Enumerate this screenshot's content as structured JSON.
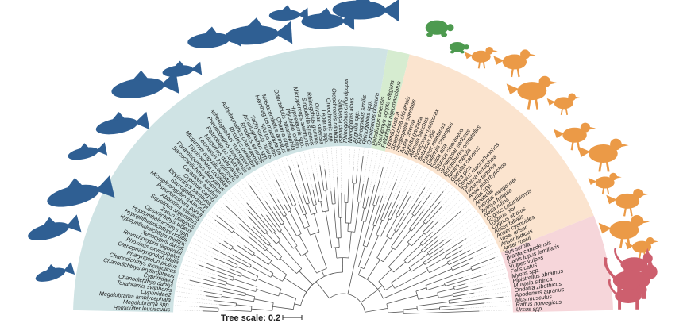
{
  "tree": {
    "scale_label": "Tree scale: 0.2",
    "colors": {
      "fish": "#2f5f93",
      "reptile": "#4d9a4f",
      "bird": "#eb9a47",
      "mammal": "#cd5f6e",
      "fish_bg": "#cfe3e4",
      "reptile_bg": "#d6ecd0",
      "bird_bg": "#fbe4cf",
      "mammal_bg": "#f6d6da"
    },
    "clades": [
      {
        "key": "fish",
        "icon": "fish-silhouette-icon",
        "leaves": [
          "Hemiculter leucisculus",
          "Megalobrama spp.",
          "Megalobrama amblycephala",
          "Cyprinidae2",
          "Toxabramis swinhonis",
          "Chanodichthys dabryi",
          "Cyprinidae3",
          "Chanodichthys erythropterus",
          "Chanodichthys mongolicus",
          "Pharyngodon piceus",
          "Ctenopharyngodon idella",
          "Phoxinus oxycephalus",
          "Rhynchocypris lagowskii",
          "Xenocypris davidi",
          "Hypophthalmichthys molitrix",
          "Hypophthalmichthys nobilis",
          "Hypophthalmichthys spp.",
          "Opsariichthys bidens",
          "Zacco platypus",
          "Squalidus argentatus",
          "Abbottina rivularis",
          "Pseudorasbora parva",
          "Microphysogobio fukiensis",
          "Saurogobio dabryi",
          "Elopichthys bambusa",
          "Cyprinus carpio",
          "Carassius auratus",
          "Sarcocheilichthys sinensis",
          "Paramisgurnus dabryanus",
          "Tiipohochara cobitidae",
          "Misgurnus anguillicaudatus",
          "Leiocassis longirostris",
          "Misgurnus dabryanus",
          "Pelteobagrus fulvidraco",
          "Pseudobagrus ussuriensis",
          "Acheilognathus macropterus",
          "Rhodeus ocellatus",
          "Acheilognathus chankaensis",
          "Rhodeus sinensis",
          "Acheilognathus spp.",
          "Tachysurus nitidus",
          "Silurus asotus",
          "Hemibagrus macropterus",
          "Mastacembelus armatus",
          "Channa argus",
          "Odontobutis potamophila",
          "Ptychidio jordani",
          "Hypseleotris spp.",
          "Micropercops swinhonis",
          "Sinobdella sinensis",
          "Rhinogobius giurinus",
          "Oryzias sinensis",
          "Lepomis spp.",
          "Oreochromis spp.",
          "Oreochromis niloticus",
          "Siniperca chuatsi",
          "Rhinogobius cliffordpopei",
          "Monopterus albus",
          "Anguilla spp.",
          "Rhinogobius similis",
          "Rhinogobius spp.",
          "Odontobutis obscura"
        ]
      },
      {
        "key": "reptile",
        "icon": "turtle-silhouette-icon",
        "leaves": [
          "Pelodiscus sinensis",
          "Trachemys scripta elegans",
          "Pelophylax nigromaculatus"
        ]
      },
      {
        "key": "bird",
        "icon": "bird-silhouette-icon",
        "leaves": [
          "Hirundo rustica",
          "Streptopelia chinensis",
          "Streptopelia orientalis",
          "Ardea cinerea",
          "Egretta garzetta",
          "Ardeola bacchus",
          "Nycticorax nycticorax",
          "Bubulcus ibis",
          "Passer montanus",
          "Gallinula chloropus",
          "Fulica atra",
          "Sturnus cineraceus",
          "Spodiopsar sericeus",
          "Acridotheres cristatellus",
          "Turdus merula",
          "Garrulax canorus",
          "Pica pica",
          "Corvus macrorhynchos",
          "Tadorna ferruginea",
          "Tadorna tadorna",
          "Anas platyrhynchos",
          "Anas spp.",
          "Anatidae",
          "Mergus merganser",
          "Aythya fuligula",
          "Netta rufina",
          "Cygnus columbianus",
          "Cygnus olor",
          "Cygnus atratus",
          "Anser fabalis",
          "Anser cygnoides",
          "Anser anser",
          "Anser indicus",
          "Anser rossii"
        ]
      },
      {
        "key": "mammal",
        "icon": "mammal-silhouette-icon",
        "leaves": [
          "Sus scrofa",
          "Branta canadensis",
          "Canis lupus familiaris",
          "Vulpes vulpes",
          "Felis catus",
          "Myotis spp.",
          "Pipistrellus abramus",
          "Mustela sibirica",
          "Ondatra zibethicus",
          "Apodemus agrarius",
          "Mus musculus",
          "Rattus norvegicus",
          "Ursus spp."
        ]
      }
    ]
  }
}
